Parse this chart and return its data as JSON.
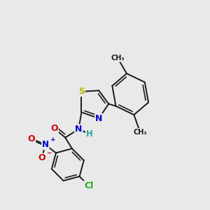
{
  "background_color": "#e9e9e9",
  "fig_size": [
    3.0,
    3.0
  ],
  "dpi": 100,
  "bond_color": "#1a1a1a",
  "bond_lw": 1.4,
  "atom_colors": {
    "S": "#b8b800",
    "N": "#0000cc",
    "O": "#cc0000",
    "Cl": "#22aa22",
    "H": "#22aaaa",
    "C": "#1a1a1a"
  },
  "xlim": [
    0.0,
    5.5
  ],
  "ylim": [
    0.3,
    6.0
  ]
}
